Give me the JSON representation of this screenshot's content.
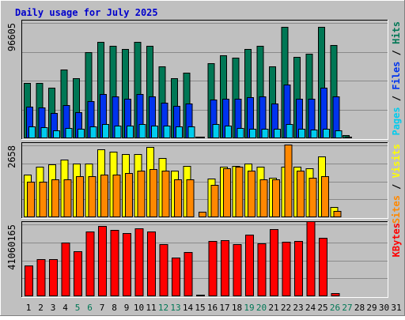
{
  "title": "Daily usage for July 2025",
  "colors": {
    "background": "#c0c0c0",
    "title": "#0000cc",
    "grid": "#8a8a8a",
    "hits": "#007755",
    "files": "#0033ee",
    "pages": "#00ccee",
    "visits": "#ffff00",
    "sites": "#ff8800",
    "kbytes": "#ff0000",
    "weekend_label": "#007755",
    "weekday_label": "#000000"
  },
  "chart_data": [
    {
      "type": "bar",
      "name": "hits-files-pages",
      "max_label": "96605",
      "ymax": 96605,
      "side_label": [
        {
          "text": "Pages",
          "color": "#00ccee"
        },
        {
          "text": " / ",
          "color": "#000000"
        },
        {
          "text": "Files",
          "color": "#0033ee"
        },
        {
          "text": " / ",
          "color": "#000000"
        },
        {
          "text": "Hits",
          "color": "#007755"
        }
      ],
      "series": [
        {
          "name": "Hits",
          "color": "#007755",
          "values": [
            46200,
            46200,
            42400,
            57800,
            50100,
            71900,
            80900,
            77700,
            74500,
            80900,
            77100,
            60000,
            50100,
            55200,
            1300,
            62900,
            69300,
            67400,
            74500,
            77100,
            60000,
            93400,
            68000,
            70600,
            93400,
            78400,
            2600,
            0,
            0,
            0,
            0
          ]
        },
        {
          "name": "Files",
          "color": "#0033ee",
          "values": [
            26300,
            25700,
            21100,
            27600,
            21800,
            30800,
            37200,
            35300,
            33400,
            37200,
            35300,
            30100,
            26900,
            28900,
            700,
            32700,
            33400,
            33400,
            34700,
            35300,
            28900,
            45000,
            33400,
            33400,
            42400,
            35300,
            1300,
            0,
            0,
            0,
            0
          ]
        },
        {
          "name": "Pages",
          "color": "#00ccee",
          "values": [
            9600,
            9000,
            6400,
            8300,
            7700,
            9600,
            11600,
            10900,
            10300,
            11600,
            10900,
            10300,
            9600,
            9600,
            0,
            12200,
            10300,
            8300,
            7700,
            7700,
            7700,
            12200,
            7700,
            7100,
            7700,
            6400,
            0,
            0,
            0,
            0,
            0
          ]
        }
      ]
    },
    {
      "type": "bar",
      "name": "visits-sites",
      "max_label": "2658",
      "ymax": 2658,
      "side_label": [
        {
          "text": "Sites",
          "color": "#ff8800"
        },
        {
          "text": " / ",
          "color": "#000000"
        },
        {
          "text": "Visits",
          "color": "#ffff00"
        }
      ],
      "series": [
        {
          "name": "Visits",
          "color": "#ffff00",
          "values": [
            1580,
            1860,
            1960,
            2140,
            2000,
            2000,
            2500,
            2420,
            2330,
            2330,
            2610,
            2190,
            1720,
            1910,
            0,
            1420,
            1860,
            1910,
            2000,
            1860,
            1460,
            1860,
            1860,
            1810,
            2240,
            380,
            0,
            0,
            0,
            0,
            0
          ]
        },
        {
          "name": "Sites",
          "color": "#ff8800",
          "values": [
            1300,
            1300,
            1410,
            1410,
            1520,
            1520,
            1580,
            1580,
            1650,
            1730,
            1780,
            1730,
            1410,
            1410,
            210,
            1210,
            1820,
            1880,
            1730,
            1410,
            1410,
            2700,
            1730,
            1470,
            1520,
            240,
            0,
            0,
            0,
            0,
            0
          ]
        }
      ]
    },
    {
      "type": "bar",
      "name": "kbytes",
      "max_label": "41060165",
      "ymax": 41060165,
      "side_label": [
        {
          "text": "KBytes",
          "color": "#ff0000"
        }
      ],
      "series": [
        {
          "name": "KBytes",
          "color": "#ff0000",
          "values": [
            17700000,
            21400000,
            21400000,
            30600000,
            25900000,
            37200000,
            40000000,
            38000000,
            36300000,
            38700000,
            37200000,
            29800000,
            22100000,
            25200000,
            500000,
            31500000,
            31900000,
            29800000,
            35400000,
            30300000,
            38300000,
            31100000,
            31500000,
            42700000,
            33500000,
            1800000,
            0,
            0,
            0,
            0,
            0
          ]
        }
      ]
    }
  ],
  "days": [
    {
      "label": "1",
      "weekend": false
    },
    {
      "label": "2",
      "weekend": false
    },
    {
      "label": "3",
      "weekend": false
    },
    {
      "label": "4",
      "weekend": false
    },
    {
      "label": "5",
      "weekend": true
    },
    {
      "label": "6",
      "weekend": true
    },
    {
      "label": "7",
      "weekend": false
    },
    {
      "label": "8",
      "weekend": false
    },
    {
      "label": "9",
      "weekend": false
    },
    {
      "label": "10",
      "weekend": false
    },
    {
      "label": "11",
      "weekend": false
    },
    {
      "label": "12",
      "weekend": true
    },
    {
      "label": "13",
      "weekend": true
    },
    {
      "label": "14",
      "weekend": false
    },
    {
      "label": "15",
      "weekend": false
    },
    {
      "label": "16",
      "weekend": false
    },
    {
      "label": "17",
      "weekend": false
    },
    {
      "label": "18",
      "weekend": false
    },
    {
      "label": "19",
      "weekend": true
    },
    {
      "label": "20",
      "weekend": true
    },
    {
      "label": "21",
      "weekend": false
    },
    {
      "label": "22",
      "weekend": false
    },
    {
      "label": "23",
      "weekend": false
    },
    {
      "label": "24",
      "weekend": false
    },
    {
      "label": "25",
      "weekend": false
    },
    {
      "label": "26",
      "weekend": true
    },
    {
      "label": "27",
      "weekend": true
    },
    {
      "label": "28",
      "weekend": false
    },
    {
      "label": "29",
      "weekend": false
    },
    {
      "label": "30",
      "weekend": false
    },
    {
      "label": "31",
      "weekend": false
    }
  ]
}
